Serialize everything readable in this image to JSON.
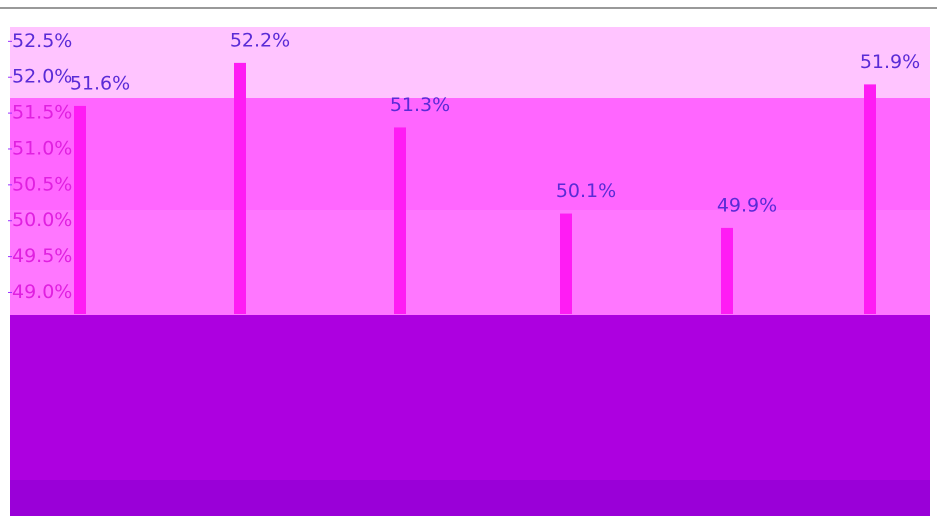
{
  "chart_data": {
    "type": "bar",
    "categories": [
      null,
      null,
      null,
      null,
      null,
      null
    ],
    "values": [
      51.6,
      52.2,
      51.3,
      50.1,
      49.9,
      51.9
    ],
    "value_labels": [
      "51.6%",
      "52.2%",
      "51.3%",
      "50.1%",
      "49.9%",
      "51.9%"
    ],
    "color": "#ff1cf4",
    "ylim": [
      48.7,
      52.7
    ],
    "yticks": [
      {
        "value": 52.5,
        "label": "52.5%"
      },
      {
        "value": 52.0,
        "label": "52.0%"
      },
      {
        "value": 51.5,
        "label": "51.5%"
      },
      {
        "value": 51.0,
        "label": "51.0%"
      },
      {
        "value": 50.5,
        "label": "50.5%"
      },
      {
        "value": 50.0,
        "label": "50.0%"
      },
      {
        "value": 49.5,
        "label": "49.5%"
      },
      {
        "value": 49.0,
        "label": "49.0%"
      }
    ]
  }
}
